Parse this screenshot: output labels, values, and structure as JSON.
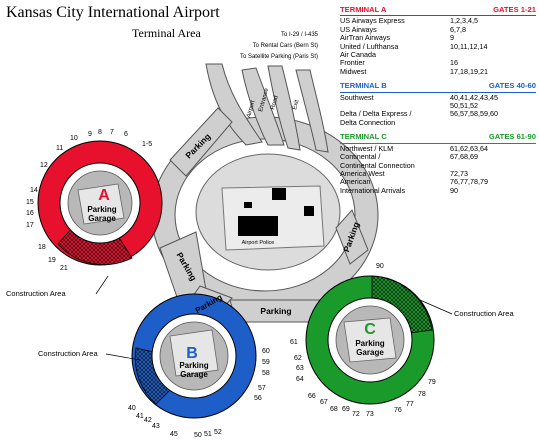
{
  "header": {
    "title": "Kansas City International Airport",
    "subtitle": "Terminal Area"
  },
  "directions": [
    "To I-29 / I-435",
    "To Rental Cars (Bern St)",
    "To Satellite Parking (Paris St)"
  ],
  "road_labels": [
    "Airport",
    "Entrance",
    "Road",
    "Exit"
  ],
  "parking_labels": [
    "Parking",
    "Parking",
    "Parking",
    "Parking",
    "Parking"
  ],
  "airport_police": "Airport Police",
  "terminals": {
    "a": {
      "letter": "A",
      "garage": [
        "Parking",
        "Garage"
      ],
      "color": "#e8112d"
    },
    "b": {
      "letter": "B",
      "garage": [
        "Parking",
        "Garage"
      ],
      "color": "#1e5ec8"
    },
    "c": {
      "letter": "C",
      "garage": [
        "Parking",
        "Garage"
      ],
      "color": "#1a9a2a"
    }
  },
  "construction_label": "Construction Area",
  "gates_a": [
    "10",
    "9",
    "8",
    "7",
    "6",
    "1-5",
    "11",
    "12",
    "14",
    "15",
    "16",
    "17",
    "18",
    "19",
    "21"
  ],
  "gates_b": [
    "60",
    "59",
    "58",
    "57",
    "56",
    "40",
    "41",
    "42",
    "43",
    "45",
    "50",
    "51",
    "52"
  ],
  "gates_c": [
    "90",
    "61",
    "62",
    "63",
    "64",
    "66",
    "67",
    "68",
    "69",
    "72",
    "73",
    "76",
    "77",
    "78",
    "79"
  ],
  "legend": [
    {
      "terminal": "TERMINAL A",
      "gates": "GATES 1-21",
      "color": "#e8112d",
      "rows": [
        {
          "airline": "US Airways Express",
          "gates": "1,2,3,4,5"
        },
        {
          "airline": "US Airways",
          "gates": "6,7,8"
        },
        {
          "airline": "AirTran Airways",
          "gates": "9"
        },
        {
          "airline": "United / Lufthansa",
          "gates": "10,11,12,14"
        },
        {
          "airline": "Air Canada",
          "gates": ""
        },
        {
          "airline": "Frontier",
          "gates": "16"
        },
        {
          "airline": "Midwest",
          "gates": "17,18,19,21"
        }
      ]
    },
    {
      "terminal": "TERMINAL B",
      "gates": "GATES 40-60",
      "color": "#1e5ec8",
      "rows": [
        {
          "airline": "Southwest",
          "gates": "40,41,42,43,45"
        },
        {
          "airline": "",
          "gates": "50,51,52"
        },
        {
          "airline": "Delta / Delta Express /",
          "gates": "56,57,58,59,60"
        },
        {
          "airline": "Delta Connection",
          "gates": ""
        }
      ]
    },
    {
      "terminal": "TERMINAL C",
      "gates": "GATES 61-90",
      "color": "#1a9a2a",
      "rows": [
        {
          "airline": "Northwest / KLM",
          "gates": "61,62,63,64"
        },
        {
          "airline": "Continental /",
          "gates": "67,68,69"
        },
        {
          "airline": "Continental Connection",
          "gates": ""
        },
        {
          "airline": "America West",
          "gates": "72,73"
        },
        {
          "airline": "American",
          "gates": "76,77,78,79"
        },
        {
          "airline": "International Arrivals",
          "gates": "90"
        }
      ]
    }
  ]
}
